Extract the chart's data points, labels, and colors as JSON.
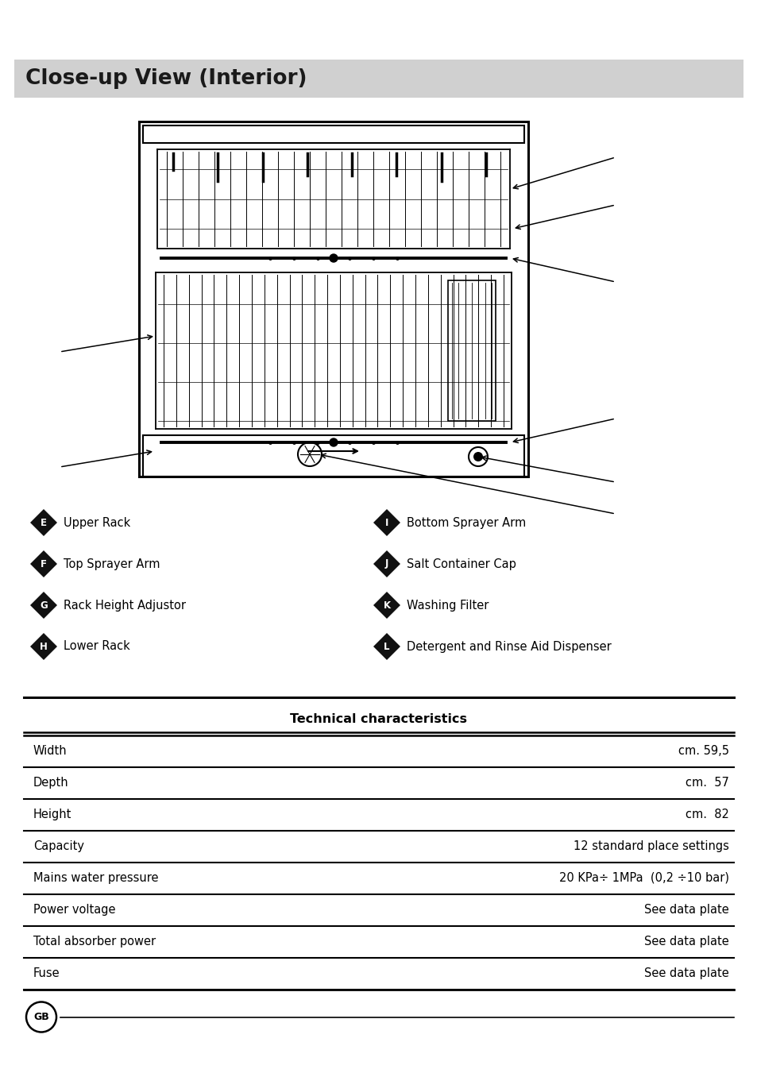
{
  "title": "Close-up View (Interior)",
  "title_bg": "#d0d0d0",
  "title_color": "#1a1a1a",
  "title_fontsize": 19,
  "left_labels": [
    {
      "letter": "E",
      "text": "Upper Rack"
    },
    {
      "letter": "F",
      "text": "Top Sprayer Arm"
    },
    {
      "letter": "G",
      "text": "Rack Height Adjustor"
    },
    {
      "letter": "H",
      "text": "Lower Rack"
    }
  ],
  "right_labels": [
    {
      "letter": "I",
      "text": "Bottom Sprayer Arm"
    },
    {
      "letter": "J",
      "text": "Salt Container Cap"
    },
    {
      "letter": "K",
      "text": "Washing Filter"
    },
    {
      "letter": "L",
      "text": "Detergent and Rinse Aid Dispenser"
    }
  ],
  "tech_title": "Technical characteristics",
  "tech_rows": [
    {
      "label": "Width",
      "value": "cm. 59,5"
    },
    {
      "label": "Depth",
      "value": "cm.  57"
    },
    {
      "label": "Height",
      "value": "cm.  82"
    },
    {
      "label": "Capacity",
      "value": "12 standard place settings"
    },
    {
      "label": "Mains water pressure",
      "value": "20 KPa÷ 1MPa  (0,2 ÷10 bar)"
    },
    {
      "label": "Power voltage",
      "value": "See data plate"
    },
    {
      "label": "Total absorber power",
      "value": "See data plate"
    },
    {
      "label": "Fuse",
      "value": "See data plate"
    }
  ],
  "bg_color": "#ffffff",
  "diamond_color": "#111111",
  "letter_color": "#ffffff",
  "text_color": "#000000",
  "label_fontsize": 10.5,
  "table_row_fontsize": 10.5
}
